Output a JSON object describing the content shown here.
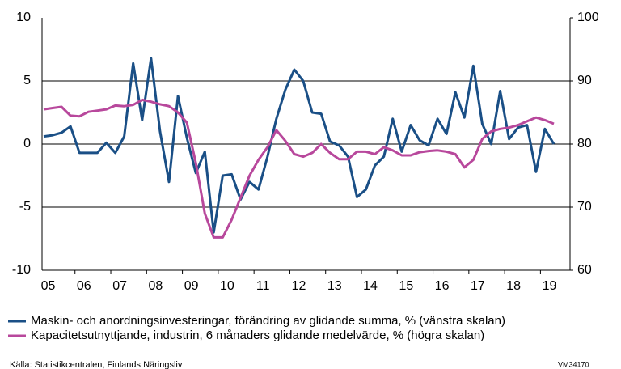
{
  "chart_data": {
    "type": "line",
    "categories": [
      "05",
      null,
      null,
      null,
      "06",
      null,
      null,
      null,
      "07",
      null,
      null,
      null,
      "08",
      null,
      null,
      null,
      "09",
      null,
      null,
      null,
      "10",
      null,
      null,
      null,
      "11",
      null,
      null,
      null,
      "12",
      null,
      null,
      null,
      "13",
      null,
      null,
      null,
      "14",
      null,
      null,
      null,
      "15",
      null,
      null,
      null,
      "16",
      null,
      null,
      null,
      "17",
      null,
      null,
      null,
      "18",
      null,
      null,
      null,
      "19",
      null
    ],
    "series": [
      {
        "name": "Maskin- och anordningsinvesteringar, förändring av glidande summa, % (vänstra skalan)",
        "color": "#1a4f86",
        "values": [
          0.6,
          0.7,
          0.9,
          1.4,
          -0.7,
          -0.7,
          -0.7,
          0.1,
          -0.7,
          0.6,
          6.4,
          1.9,
          6.8,
          1.0,
          -3.0,
          3.8,
          0.5,
          -2.3,
          -0.6,
          -7.0,
          -2.5,
          -2.4,
          -4.4,
          -3.0,
          -3.6,
          -1.0,
          2.0,
          4.3,
          5.9,
          5.0,
          2.5,
          2.4,
          0.2,
          -0.1,
          -1.0,
          -4.2,
          -3.6,
          -1.7,
          -1.0,
          2.0,
          -0.6,
          1.5,
          0.3,
          -0.1,
          2.0,
          0.8,
          4.1,
          2.1,
          6.2,
          1.6,
          0.0,
          4.2,
          0.4,
          1.3,
          1.5,
          -2.2,
          1.2,
          0.0
        ]
      },
      {
        "name": "Kapacitetsutnyttjande, industrin, 6 månaders glidande medelvärde, % (högra skalan)",
        "color": "#b8489c",
        "axis": "y2",
        "values": [
          85.5,
          85.7,
          85.9,
          84.5,
          84.4,
          85.1,
          85.3,
          85.5,
          86.1,
          86.0,
          86.2,
          87.0,
          86.7,
          86.3,
          86.0,
          85.0,
          83.4,
          77.0,
          69.0,
          65.2,
          65.2,
          68.0,
          71.5,
          75.0,
          77.5,
          79.5,
          82.2,
          80.5,
          78.4,
          78.0,
          78.6,
          80.0,
          78.6,
          77.6,
          77.6,
          78.8,
          78.8,
          78.4,
          79.5,
          79.0,
          78.2,
          78.2,
          78.7,
          78.9,
          79.0,
          78.8,
          78.4,
          76.3,
          77.5,
          80.8,
          82.0,
          82.4,
          82.6,
          83.0,
          83.6,
          84.2,
          83.8,
          83.2
        ]
      }
    ],
    "ylim": [
      -10,
      10
    ],
    "yticks": [
      -10,
      -5,
      0,
      5,
      10
    ],
    "y2lim": [
      60,
      100
    ],
    "y2ticks": [
      60,
      70,
      80,
      90,
      100
    ],
    "grid": true,
    "source": "Källa: Statistikcentralen, Finlands Näringsliv",
    "code": "VM34170"
  }
}
